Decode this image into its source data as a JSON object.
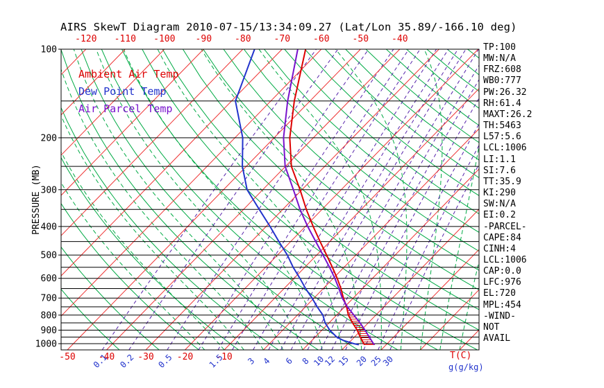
{
  "title": "AIRS SkewT Diagram 2010-07-15/13:34:09.27 (Lat/Lon 35.89/-166.10 deg)",
  "legend": {
    "items": [
      {
        "id": "ambient-temp",
        "label": "Ambient Air Temp",
        "color": "#dd0000"
      },
      {
        "id": "dew-point",
        "label": "Dew Point Temp",
        "color": "#2233cc"
      },
      {
        "id": "air-parcel",
        "label": "Air Parcel Temp",
        "color": "#7711cc"
      }
    ]
  },
  "axes": {
    "pressure_axis_label": "PRESSURE (MB)",
    "pressure_tick_labels": [
      100,
      200,
      300,
      400,
      500,
      600,
      700,
      800,
      900,
      1000
    ],
    "pressure_gridlines": [
      100,
      150,
      200,
      250,
      300,
      350,
      400,
      450,
      500,
      550,
      600,
      650,
      700,
      750,
      800,
      850,
      900,
      950,
      1000,
      1050
    ],
    "top_temperature_labels": [
      -120,
      -110,
      -100,
      -90,
      -80,
      -70,
      -60,
      -50,
      -40
    ],
    "bottom_temperature_labels": [
      -50,
      -40,
      -30,
      -20,
      -10
    ],
    "temperature_unit_label": "T(C)",
    "mixing_ratio_unit_label": "g(g/kg)",
    "mixing_ratio_axis_labels": [
      0.1,
      0.2,
      0.5,
      1.5,
      3,
      4,
      6,
      8,
      10,
      12,
      15,
      20,
      25,
      30
    ]
  },
  "chart_data": {
    "type": "line",
    "variant": "skew-t-log-p",
    "title": "AIRS SkewT Diagram 2010-07-15/13:34:09.27 (Lat/Lon 35.89/-166.10 deg)",
    "xlabel": "T(C)",
    "ylabel": "PRESSURE (MB)",
    "y_scale": "log",
    "ylim": [
      1050,
      100
    ],
    "x_skew_deg": 45,
    "grid": true,
    "legend_position": "upper-left-inside",
    "isotherms_c": {
      "min": -120,
      "max": 60,
      "step": 10
    },
    "dry_adiabats_c": {
      "min": -40,
      "max": 210,
      "step": 10
    },
    "moist_adiabats_c": {
      "min": -15,
      "max": 50,
      "step": 5
    },
    "mixing_ratio_lines_gkg": [
      0.1,
      0.2,
      0.5,
      1,
      1.5,
      2,
      3,
      4,
      5,
      6,
      8,
      10,
      12,
      15,
      20,
      25,
      30
    ],
    "series": [
      {
        "id": "ambient-temp",
        "name": "Ambient Air Temp",
        "color": "#dd0000",
        "style": "solid",
        "points_p_t": [
          [
            1008,
            24.5
          ],
          [
            1000,
            24.0
          ],
          [
            950,
            21.5
          ],
          [
            900,
            19.0
          ],
          [
            850,
            16.0
          ],
          [
            800,
            13.0
          ],
          [
            750,
            10.5
          ],
          [
            700,
            7.5
          ],
          [
            650,
            4.5
          ],
          [
            600,
            1.0
          ],
          [
            550,
            -3.0
          ],
          [
            500,
            -7.5
          ],
          [
            450,
            -12.5
          ],
          [
            400,
            -18.0
          ],
          [
            350,
            -24.0
          ],
          [
            300,
            -30.5
          ],
          [
            250,
            -38.5
          ],
          [
            200,
            -46.0
          ],
          [
            150,
            -54.0
          ],
          [
            100,
            -64.0
          ]
        ]
      },
      {
        "id": "dew-point",
        "name": "Dew Point Temp",
        "color": "#2233cc",
        "style": "solid",
        "points_p_t": [
          [
            1008,
            23.0
          ],
          [
            1000,
            21.5
          ],
          [
            975,
            18.0
          ],
          [
            950,
            15.5
          ],
          [
            900,
            12.0
          ],
          [
            850,
            9.0
          ],
          [
            800,
            6.5
          ],
          [
            750,
            3.0
          ],
          [
            700,
            -0.5
          ],
          [
            650,
            -4.5
          ],
          [
            600,
            -8.5
          ],
          [
            550,
            -13.0
          ],
          [
            500,
            -17.5
          ],
          [
            450,
            -23.0
          ],
          [
            400,
            -29.0
          ],
          [
            350,
            -36.0
          ],
          [
            300,
            -44.0
          ],
          [
            250,
            -51.0
          ],
          [
            200,
            -58.0
          ],
          [
            150,
            -69.0
          ],
          [
            100,
            -77.0
          ]
        ]
      },
      {
        "id": "air-parcel",
        "name": "Air Parcel Temp",
        "color": "#7711cc",
        "style": "solid",
        "points_p_t": [
          [
            1008,
            27.0
          ],
          [
            1000,
            26.5
          ],
          [
            950,
            23.8
          ],
          [
            900,
            21.0
          ],
          [
            850,
            17.9
          ],
          [
            800,
            14.4
          ],
          [
            750,
            10.7
          ],
          [
            700,
            7.2
          ],
          [
            650,
            4.0
          ],
          [
            600,
            0.4
          ],
          [
            550,
            -3.7
          ],
          [
            500,
            -8.4
          ],
          [
            450,
            -13.6
          ],
          [
            400,
            -19.4
          ],
          [
            350,
            -25.6
          ],
          [
            300,
            -32.2
          ],
          [
            250,
            -40.1
          ],
          [
            200,
            -47.6
          ],
          [
            150,
            -55.7
          ],
          [
            100,
            -66.0
          ]
        ]
      }
    ],
    "cape_hatch": {
      "between": [
        "Air Parcel Temp",
        "Ambient Air Temp"
      ],
      "p_range": [
        1008,
        750
      ],
      "color": "#dd0000"
    }
  },
  "side_panel": {
    "lines": [
      "TP:100",
      "MW:N/A",
      "FRZ:608",
      "WB0:777",
      "PW:26.32",
      "RH:61.4",
      "MAXT:26.2",
      "TH:5463",
      "L57:5.6",
      "LCL:1006",
      "LI:1.1",
      "SI:7.6",
      "TT:35.9",
      "KI:290",
      "SW:N/A",
      "EI:0.2",
      "-PARCEL-",
      "CAPE:84",
      "CINH:4",
      "LCL:1006",
      "CAP:0.0",
      "LFC:976",
      "EL:720",
      "MPL:454",
      "-WIND-",
      "NOT",
      "AVAIL"
    ]
  },
  "colors": {
    "isotherm": "#ee3333",
    "dry_adiabat": "#00aa44",
    "moist_adiabat": "#00aa44",
    "mixing_ratio": "#5522aa",
    "pressure_line": "#000000",
    "frame": "#000000",
    "ambient": "#dd0000",
    "dewpoint": "#2233cc",
    "parcel": "#7711cc",
    "top_axis_label": "#dd0000",
    "bottom_axis_label": "#dd0000",
    "mixing_label": "#2233cc",
    "panel_text": "#000000"
  }
}
